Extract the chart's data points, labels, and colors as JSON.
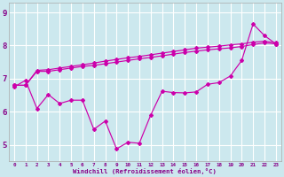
{
  "xlabel": "Windchill (Refroidissement éolien,°C)",
  "bg_color": "#cce8ee",
  "line_color": "#cc00aa",
  "grid_color": "#ffffff",
  "xlim_min": -0.5,
  "xlim_max": 23.5,
  "ylim_min": 4.5,
  "ylim_max": 9.3,
  "xticks": [
    0,
    1,
    2,
    3,
    4,
    5,
    6,
    7,
    8,
    9,
    10,
    11,
    12,
    13,
    14,
    15,
    16,
    17,
    18,
    19,
    20,
    21,
    22,
    23
  ],
  "yticks": [
    5,
    6,
    7,
    8,
    9
  ],
  "line_upper": [
    6.8,
    6.8,
    7.25,
    7.27,
    7.32,
    7.37,
    7.42,
    7.47,
    7.53,
    7.58,
    7.63,
    7.67,
    7.72,
    7.77,
    7.82,
    7.87,
    7.92,
    7.95,
    7.98,
    8.02,
    8.05,
    8.1,
    8.13,
    8.08
  ],
  "line_mid": [
    6.8,
    6.8,
    7.22,
    7.22,
    7.27,
    7.32,
    7.37,
    7.4,
    7.45,
    7.5,
    7.55,
    7.6,
    7.64,
    7.69,
    7.74,
    7.79,
    7.83,
    7.87,
    7.9,
    7.93,
    7.97,
    8.03,
    8.08,
    8.05
  ],
  "line_data": [
    6.75,
    6.95,
    6.1,
    6.52,
    6.25,
    6.35,
    6.35,
    5.47,
    5.72,
    4.88,
    5.08,
    5.05,
    5.9,
    6.62,
    6.58,
    6.57,
    6.6,
    6.83,
    6.88,
    7.08,
    7.55,
    8.65,
    8.3,
    8.05
  ]
}
